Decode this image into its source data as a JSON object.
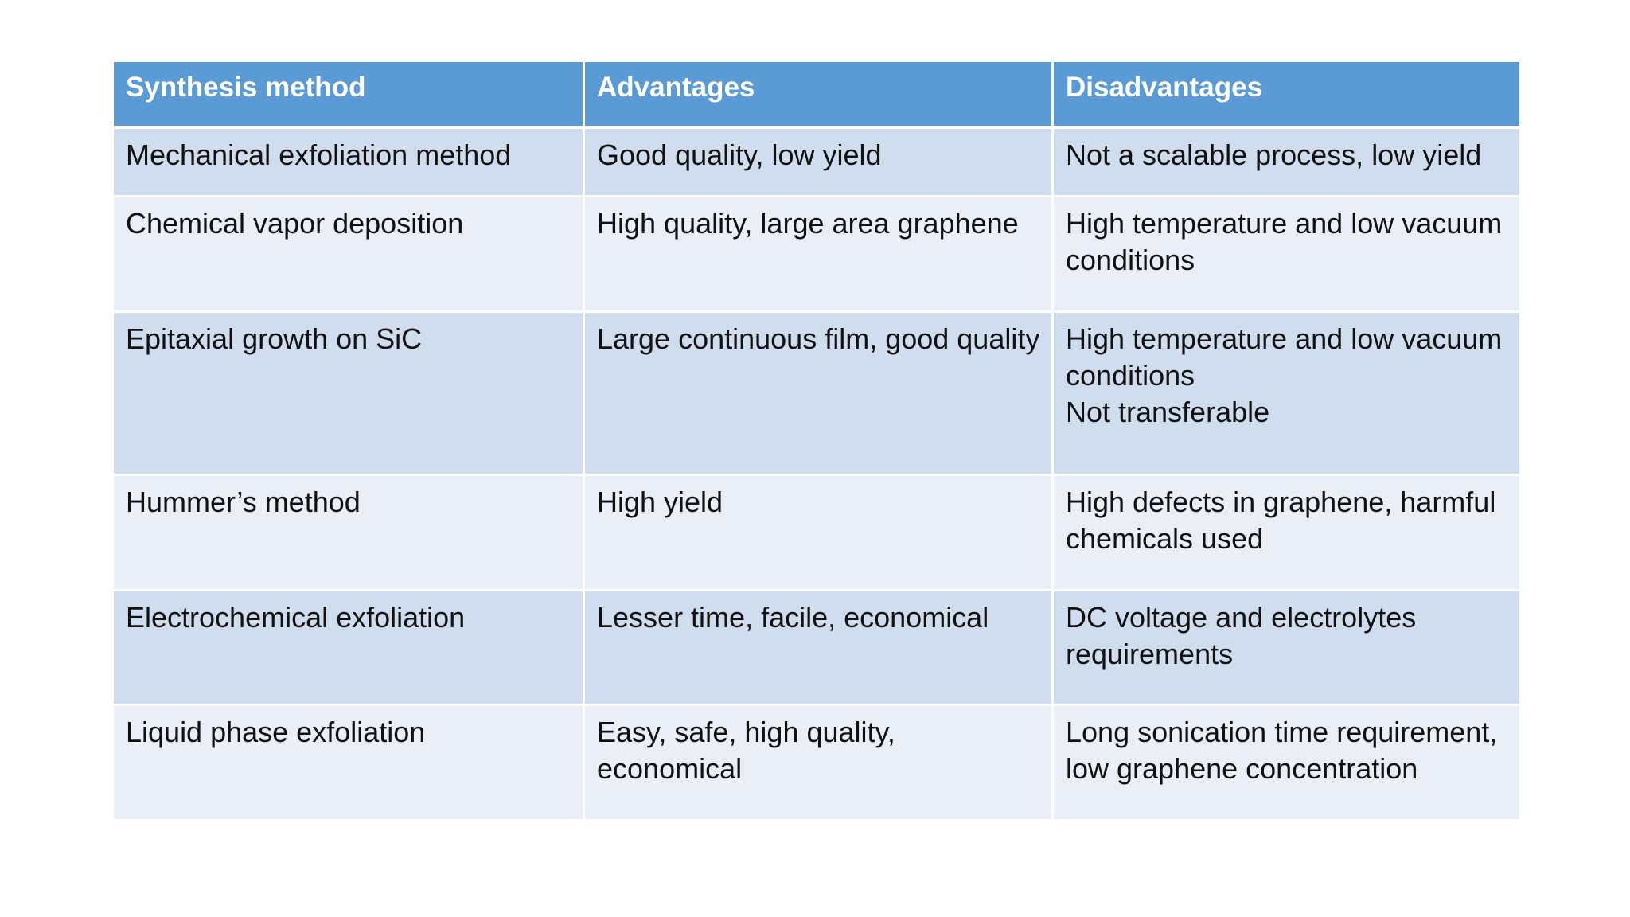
{
  "table": {
    "headers": [
      "Synthesis method",
      "Advantages",
      "Disadvantages"
    ],
    "rows": [
      {
        "method": "Mechanical exfoliation method",
        "advantages": "Good quality, low yield",
        "disadvantages": [
          "Not a scalable process, low yield"
        ]
      },
      {
        "method": "Chemical vapor deposition",
        "advantages": "High quality, large area graphene",
        "disadvantages": [
          "High temperature and low vacuum conditions"
        ]
      },
      {
        "method": "Epitaxial growth on SiC",
        "advantages": "Large continuous film, good quality",
        "disadvantages": [
          "High temperature and low vacuum conditions",
          "Not transferable"
        ]
      },
      {
        "method": "Hummer’s method",
        "advantages": "High yield",
        "disadvantages": [
          "High defects in graphene, harmful chemicals used"
        ]
      },
      {
        "method": "Electrochemical exfoliation",
        "advantages": "Lesser time, facile, economical",
        "disadvantages": [
          "DC voltage and electrolytes requirements"
        ]
      },
      {
        "method": "Liquid phase exfoliation",
        "advantages": "Easy, safe, high quality, economical",
        "disadvantages": [
          "Long sonication time requirement, low graphene concentration"
        ]
      }
    ]
  },
  "colors": {
    "header_bg": "#5b9bd5",
    "row_odd_bg": "#d0ddef",
    "row_even_bg": "#e9eef7",
    "header_text": "#ffffff",
    "body_text": "#111111"
  }
}
